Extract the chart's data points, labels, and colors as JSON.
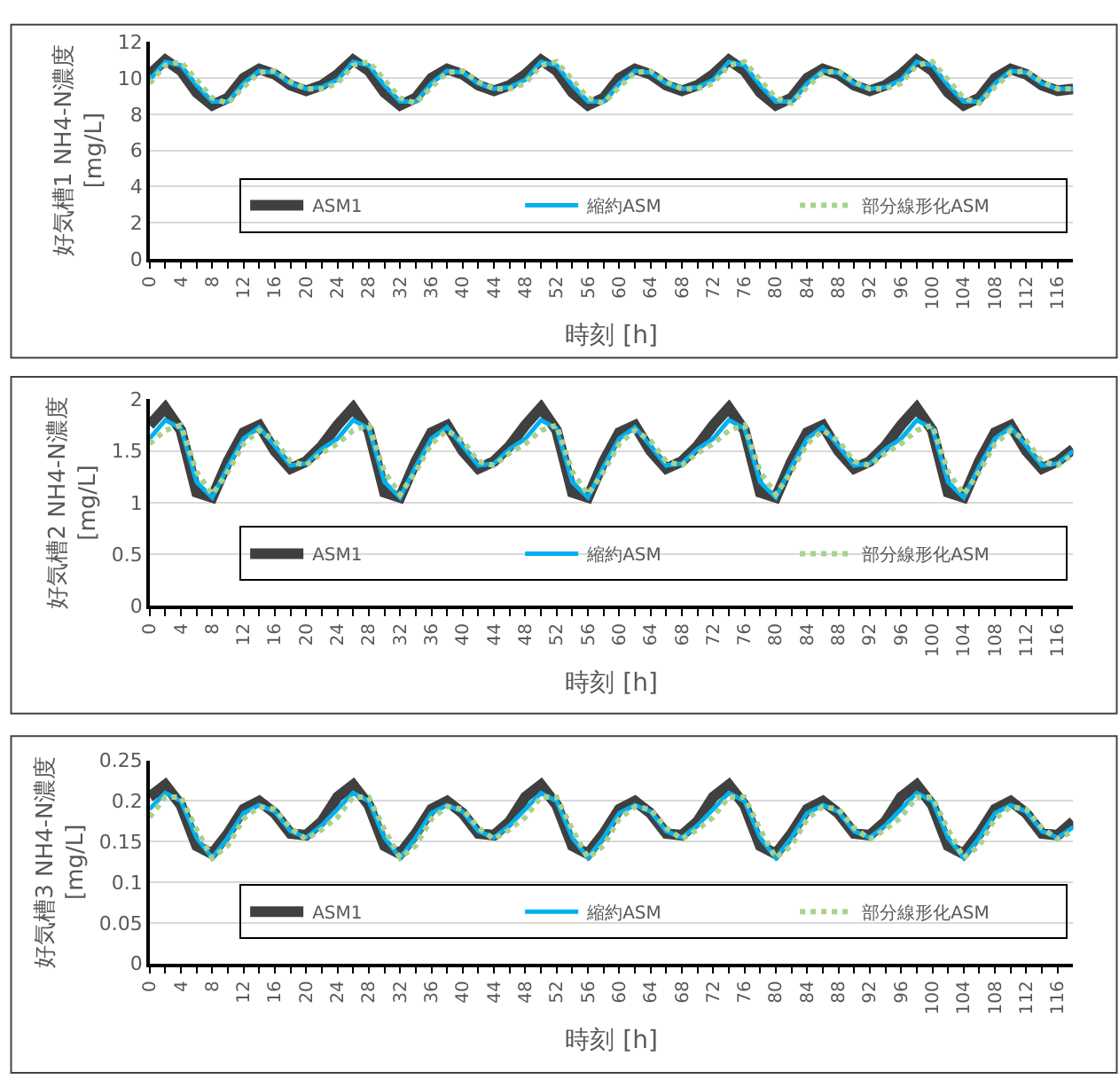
{
  "chart_data": [
    {
      "type": "line",
      "xlabel": "時刻 [h]",
      "ylabel": "好気槽1 NH4-N濃度\n[mg/L]",
      "ylim": [
        0,
        12
      ],
      "yticks": [
        0,
        2,
        4,
        6,
        8,
        10,
        12
      ],
      "xlim": [
        0,
        118
      ],
      "xticks": [
        0,
        {
          "value": 2,
          "label": null
        },
        4,
        {
          "value": 6,
          "label": null
        },
        8,
        {
          "value": 10,
          "label": null
        },
        12,
        {
          "value": 14,
          "label": null
        },
        16,
        {
          "value": 18,
          "label": null
        },
        20,
        {
          "value": 22,
          "label": null
        },
        24,
        {
          "value": 26,
          "label": null
        },
        28,
        {
          "value": 30,
          "label": null
        },
        32,
        {
          "value": 34,
          "label": null
        },
        36,
        {
          "value": 38,
          "label": null
        },
        40,
        {
          "value": 42,
          "label": null
        },
        44,
        {
          "value": 46,
          "label": null
        },
        48,
        {
          "value": 50,
          "label": null
        },
        52,
        {
          "value": 54,
          "label": null
        },
        56,
        {
          "value": 58,
          "label": null
        },
        60,
        {
          "value": 62,
          "label": null
        },
        64,
        {
          "value": 66,
          "label": null
        },
        68,
        {
          "value": 70,
          "label": null
        },
        72,
        {
          "value": 74,
          "label": null
        },
        76,
        {
          "value": 78,
          "label": null
        },
        80,
        {
          "value": 82,
          "label": null
        },
        84,
        {
          "value": 86,
          "label": null
        },
        88,
        {
          "value": 90,
          "label": null
        },
        92,
        {
          "value": 94,
          "label": null
        },
        96,
        {
          "value": 98,
          "label": null
        },
        100,
        {
          "value": 102,
          "label": null
        },
        104,
        {
          "value": 106,
          "label": null
        },
        108,
        {
          "value": 110,
          "label": null
        },
        112,
        {
          "value": 114,
          "label": null
        },
        116
      ],
      "grid": "y",
      "legend": "bottom right",
      "x": [
        0,
        2,
        4,
        6,
        8,
        10,
        12,
        14,
        16,
        18,
        20,
        22,
        24,
        26,
        28,
        30,
        32,
        34,
        36,
        38,
        40,
        42,
        44,
        46,
        48,
        50,
        52,
        54,
        56,
        58,
        60,
        62,
        64,
        66,
        68,
        70,
        72,
        74,
        76,
        78,
        80,
        82,
        84,
        86,
        88,
        90,
        92,
        94,
        96,
        98,
        100,
        102,
        104,
        106,
        108,
        110,
        112,
        114,
        116,
        118
      ],
      "series": [
        {
          "name": "ASM1",
          "color": "#404040",
          "line_style": "solid",
          "values": [
            10.2,
            11.0,
            10.4,
            9.2,
            8.5,
            8.9,
            10.0,
            10.5,
            10.2,
            9.6,
            9.3,
            9.6,
            10.2,
            11.0,
            10.4,
            9.2,
            8.5,
            8.9,
            10.0,
            10.5,
            10.2,
            9.6,
            9.3,
            9.6,
            10.2,
            11.0,
            10.4,
            9.2,
            8.5,
            8.9,
            10.0,
            10.5,
            10.2,
            9.6,
            9.3,
            9.6,
            10.2,
            11.0,
            10.4,
            9.2,
            8.5,
            8.9,
            10.0,
            10.5,
            10.2,
            9.6,
            9.3,
            9.6,
            10.2,
            11.0,
            10.4,
            9.2,
            8.5,
            8.9,
            10.0,
            10.5,
            10.2,
            9.6,
            9.3,
            9.4
          ]
        },
        {
          "name": "縮約ASM",
          "color": "#00b0f0",
          "line_style": "solid",
          "values": [
            9.9,
            10.9,
            10.7,
            9.6,
            8.7,
            8.7,
            9.7,
            10.4,
            10.3,
            9.7,
            9.4,
            9.5,
            9.9,
            10.9,
            10.7,
            9.6,
            8.7,
            8.7,
            9.7,
            10.4,
            10.3,
            9.7,
            9.4,
            9.5,
            9.9,
            10.9,
            10.7,
            9.6,
            8.7,
            8.7,
            9.7,
            10.4,
            10.3,
            9.7,
            9.4,
            9.5,
            9.9,
            10.9,
            10.7,
            9.6,
            8.7,
            8.7,
            9.7,
            10.4,
            10.3,
            9.7,
            9.4,
            9.5,
            9.9,
            10.9,
            10.7,
            9.6,
            8.7,
            8.7,
            9.7,
            10.4,
            10.3,
            9.7,
            9.4,
            9.4
          ]
        },
        {
          "name": "部分線形化ASM",
          "color": "#a9d18e",
          "line_style": "dotted",
          "values": [
            9.7,
            10.7,
            10.9,
            9.9,
            8.9,
            8.6,
            9.5,
            10.3,
            10.4,
            9.8,
            9.4,
            9.4,
            9.7,
            10.7,
            10.9,
            9.9,
            8.9,
            8.6,
            9.5,
            10.3,
            10.4,
            9.8,
            9.4,
            9.4,
            9.7,
            10.7,
            10.9,
            9.9,
            8.9,
            8.6,
            9.5,
            10.3,
            10.4,
            9.8,
            9.4,
            9.4,
            9.7,
            10.7,
            10.9,
            9.9,
            8.9,
            8.6,
            9.5,
            10.3,
            10.4,
            9.8,
            9.4,
            9.4,
            9.7,
            10.7,
            10.9,
            9.9,
            8.9,
            8.6,
            9.5,
            10.3,
            10.4,
            9.8,
            9.4,
            9.4
          ]
        }
      ]
    },
    {
      "type": "line",
      "xlabel": "時刻 [h]",
      "ylabel": "好気槽2 NH4-N濃度\n[mg/L]",
      "ylim": [
        0,
        2
      ],
      "yticks": [
        0,
        0.5,
        1,
        1.5,
        2
      ],
      "xlim": [
        0,
        118
      ],
      "xticks": [
        0,
        {
          "value": 2,
          "label": null
        },
        4,
        {
          "value": 6,
          "label": null
        },
        8,
        {
          "value": 10,
          "label": null
        },
        12,
        {
          "value": 14,
          "label": null
        },
        16,
        {
          "value": 18,
          "label": null
        },
        20,
        {
          "value": 22,
          "label": null
        },
        24,
        {
          "value": 26,
          "label": null
        },
        28,
        {
          "value": 30,
          "label": null
        },
        32,
        {
          "value": 34,
          "label": null
        },
        36,
        {
          "value": 38,
          "label": null
        },
        40,
        {
          "value": 42,
          "label": null
        },
        44,
        {
          "value": 46,
          "label": null
        },
        48,
        {
          "value": 50,
          "label": null
        },
        52,
        {
          "value": 54,
          "label": null
        },
        56,
        {
          "value": 58,
          "label": null
        },
        60,
        {
          "value": 62,
          "label": null
        },
        64,
        {
          "value": 66,
          "label": null
        },
        68,
        {
          "value": 70,
          "label": null
        },
        72,
        {
          "value": 74,
          "label": null
        },
        76,
        {
          "value": 78,
          "label": null
        },
        80,
        {
          "value": 82,
          "label": null
        },
        84,
        {
          "value": 86,
          "label": null
        },
        88,
        {
          "value": 90,
          "label": null
        },
        92,
        {
          "value": 94,
          "label": null
        },
        96,
        {
          "value": 98,
          "label": null
        },
        100,
        {
          "value": 102,
          "label": null
        },
        104,
        {
          "value": 106,
          "label": null
        },
        108,
        {
          "value": 110,
          "label": null
        },
        112,
        {
          "value": 114,
          "label": null
        },
        116
      ],
      "grid": "y",
      "legend": "bottom right",
      "x": [
        0,
        2,
        4,
        6,
        8,
        10,
        12,
        14,
        16,
        18,
        20,
        22,
        24,
        26,
        28,
        30,
        32,
        34,
        36,
        38,
        40,
        42,
        44,
        46,
        48,
        50,
        52,
        54,
        56,
        58,
        60,
        62,
        64,
        66,
        68,
        70,
        72,
        74,
        76,
        78,
        80,
        82,
        84,
        86,
        88,
        90,
        92,
        94,
        96,
        98,
        100,
        102,
        104,
        106,
        108,
        110,
        112,
        114,
        116,
        118
      ],
      "series": [
        {
          "name": "ASM1",
          "color": "#404040",
          "line_style": "solid",
          "values": [
            1.75,
            1.92,
            1.7,
            1.1,
            1.05,
            1.4,
            1.68,
            1.75,
            1.5,
            1.33,
            1.4,
            1.55,
            1.75,
            1.92,
            1.7,
            1.1,
            1.05,
            1.4,
            1.68,
            1.75,
            1.5,
            1.33,
            1.4,
            1.55,
            1.75,
            1.92,
            1.7,
            1.1,
            1.05,
            1.4,
            1.68,
            1.75,
            1.5,
            1.33,
            1.4,
            1.55,
            1.75,
            1.92,
            1.7,
            1.1,
            1.05,
            1.4,
            1.68,
            1.75,
            1.5,
            1.33,
            1.4,
            1.55,
            1.75,
            1.92,
            1.7,
            1.1,
            1.05,
            1.4,
            1.68,
            1.75,
            1.5,
            1.33,
            1.4,
            1.52
          ]
        },
        {
          "name": "縮約ASM",
          "color": "#00b0f0",
          "line_style": "solid",
          "values": [
            1.62,
            1.8,
            1.72,
            1.2,
            1.05,
            1.35,
            1.62,
            1.73,
            1.55,
            1.36,
            1.38,
            1.52,
            1.62,
            1.8,
            1.72,
            1.2,
            1.05,
            1.35,
            1.62,
            1.73,
            1.55,
            1.36,
            1.38,
            1.52,
            1.62,
            1.8,
            1.72,
            1.2,
            1.05,
            1.35,
            1.62,
            1.73,
            1.55,
            1.36,
            1.38,
            1.52,
            1.62,
            1.8,
            1.72,
            1.2,
            1.05,
            1.35,
            1.62,
            1.73,
            1.55,
            1.36,
            1.38,
            1.52,
            1.62,
            1.8,
            1.72,
            1.2,
            1.05,
            1.35,
            1.62,
            1.73,
            1.55,
            1.36,
            1.38,
            1.5
          ]
        },
        {
          "name": "部分線形化ASM",
          "color": "#a9d18e",
          "line_style": "dotted",
          "values": [
            1.57,
            1.7,
            1.75,
            1.3,
            1.08,
            1.3,
            1.57,
            1.7,
            1.6,
            1.4,
            1.36,
            1.48,
            1.57,
            1.7,
            1.75,
            1.3,
            1.08,
            1.3,
            1.57,
            1.7,
            1.6,
            1.4,
            1.36,
            1.48,
            1.57,
            1.7,
            1.75,
            1.3,
            1.08,
            1.3,
            1.57,
            1.7,
            1.6,
            1.4,
            1.36,
            1.48,
            1.57,
            1.7,
            1.75,
            1.3,
            1.08,
            1.3,
            1.57,
            1.7,
            1.6,
            1.4,
            1.36,
            1.48,
            1.57,
            1.7,
            1.75,
            1.3,
            1.08,
            1.3,
            1.57,
            1.7,
            1.6,
            1.4,
            1.36,
            1.47
          ]
        }
      ]
    },
    {
      "type": "line",
      "xlabel": "時刻 [h]",
      "ylabel": "好気槽3 NH4-N濃度\n[mg/L]",
      "ylim": [
        0,
        0.25
      ],
      "yticks": [
        0,
        0.05,
        0.1,
        0.15,
        0.2,
        0.25
      ],
      "xlim": [
        0,
        118
      ],
      "xticks": [
        0,
        {
          "value": 2,
          "label": null
        },
        4,
        {
          "value": 6,
          "label": null
        },
        8,
        {
          "value": 10,
          "label": null
        },
        12,
        {
          "value": 14,
          "label": null
        },
        16,
        {
          "value": 18,
          "label": null
        },
        20,
        {
          "value": 22,
          "label": null
        },
        24,
        {
          "value": 26,
          "label": null
        },
        28,
        {
          "value": 30,
          "label": null
        },
        32,
        {
          "value": 34,
          "label": null
        },
        36,
        {
          "value": 38,
          "label": null
        },
        40,
        {
          "value": 42,
          "label": null
        },
        44,
        {
          "value": 46,
          "label": null
        },
        48,
        {
          "value": 50,
          "label": null
        },
        52,
        {
          "value": 54,
          "label": null
        },
        56,
        {
          "value": 58,
          "label": null
        },
        60,
        {
          "value": 62,
          "label": null
        },
        64,
        {
          "value": 66,
          "label": null
        },
        68,
        {
          "value": 70,
          "label": null
        },
        72,
        {
          "value": 74,
          "label": null
        },
        76,
        {
          "value": 78,
          "label": null
        },
        80,
        {
          "value": 82,
          "label": null
        },
        84,
        {
          "value": 86,
          "label": null
        },
        88,
        {
          "value": 90,
          "label": null
        },
        92,
        {
          "value": 94,
          "label": null
        },
        96,
        {
          "value": 98,
          "label": null
        },
        100,
        {
          "value": 102,
          "label": null
        },
        104,
        {
          "value": 106,
          "label": null
        },
        108,
        {
          "value": 110,
          "label": null
        },
        112,
        {
          "value": 114,
          "label": null
        },
        116
      ],
      "grid": "y",
      "legend": "bottom right",
      "x": [
        0,
        2,
        4,
        6,
        8,
        10,
        12,
        14,
        16,
        18,
        20,
        22,
        24,
        26,
        28,
        30,
        32,
        34,
        36,
        38,
        40,
        42,
        44,
        46,
        48,
        50,
        52,
        54,
        56,
        58,
        60,
        62,
        64,
        66,
        68,
        70,
        72,
        74,
        76,
        78,
        80,
        82,
        84,
        86,
        88,
        90,
        92,
        94,
        96,
        98,
        100,
        102,
        104,
        106,
        108,
        110,
        112,
        114,
        116,
        118
      ],
      "series": [
        {
          "name": "ASM1",
          "color": "#404040",
          "line_style": "solid",
          "values": [
            0.205,
            0.22,
            0.195,
            0.145,
            0.135,
            0.16,
            0.19,
            0.2,
            0.185,
            0.16,
            0.158,
            0.175,
            0.205,
            0.22,
            0.195,
            0.145,
            0.135,
            0.16,
            0.19,
            0.2,
            0.185,
            0.16,
            0.158,
            0.175,
            0.205,
            0.22,
            0.195,
            0.145,
            0.135,
            0.16,
            0.19,
            0.2,
            0.185,
            0.16,
            0.158,
            0.175,
            0.205,
            0.22,
            0.195,
            0.145,
            0.135,
            0.16,
            0.19,
            0.2,
            0.185,
            0.16,
            0.158,
            0.175,
            0.205,
            0.22,
            0.195,
            0.145,
            0.135,
            0.16,
            0.19,
            0.2,
            0.185,
            0.16,
            0.158,
            0.175
          ]
        },
        {
          "name": "縮約ASM",
          "color": "#00b0f0",
          "line_style": "solid",
          "values": [
            0.19,
            0.21,
            0.2,
            0.155,
            0.13,
            0.155,
            0.185,
            0.195,
            0.187,
            0.163,
            0.155,
            0.17,
            0.19,
            0.21,
            0.2,
            0.155,
            0.13,
            0.155,
            0.185,
            0.195,
            0.187,
            0.163,
            0.155,
            0.17,
            0.19,
            0.21,
            0.2,
            0.155,
            0.13,
            0.155,
            0.185,
            0.195,
            0.187,
            0.163,
            0.155,
            0.17,
            0.19,
            0.21,
            0.2,
            0.155,
            0.13,
            0.155,
            0.185,
            0.195,
            0.187,
            0.163,
            0.155,
            0.17,
            0.19,
            0.21,
            0.2,
            0.155,
            0.13,
            0.155,
            0.185,
            0.195,
            0.187,
            0.163,
            0.155,
            0.168
          ]
        },
        {
          "name": "部分線形化ASM",
          "color": "#a9d18e",
          "line_style": "dotted",
          "values": [
            0.18,
            0.205,
            0.205,
            0.165,
            0.13,
            0.145,
            0.178,
            0.193,
            0.19,
            0.167,
            0.153,
            0.165,
            0.18,
            0.205,
            0.205,
            0.165,
            0.13,
            0.145,
            0.178,
            0.193,
            0.19,
            0.167,
            0.153,
            0.165,
            0.18,
            0.205,
            0.205,
            0.165,
            0.13,
            0.145,
            0.178,
            0.193,
            0.19,
            0.167,
            0.153,
            0.165,
            0.18,
            0.205,
            0.205,
            0.165,
            0.13,
            0.145,
            0.178,
            0.193,
            0.19,
            0.167,
            0.153,
            0.165,
            0.18,
            0.205,
            0.205,
            0.165,
            0.13,
            0.145,
            0.178,
            0.193,
            0.19,
            0.167,
            0.153,
            0.163
          ]
        }
      ]
    }
  ]
}
